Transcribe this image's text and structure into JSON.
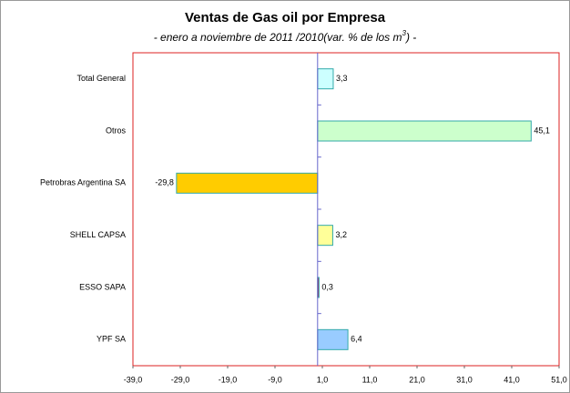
{
  "chart_data": {
    "type": "hbar",
    "title": "Ventas de Gas oil por Empresa",
    "subtitle": [
      "- enero a noviembre de 2011 /2010(var. % de los m",
      "3",
      ") -"
    ],
    "categories": [
      "Total General",
      "Otros",
      "Petrobras Argentina SA",
      "SHELL CAPSA",
      "ESSO SAPA",
      "YPF SA"
    ],
    "values": [
      3.3,
      45.1,
      -29.8,
      3.2,
      0.3,
      6.4
    ],
    "value_labels": [
      "3,3",
      "45,1",
      "-29,8",
      "3,2",
      "0,3",
      "6,4"
    ],
    "colors": [
      "#ccffff",
      "#ccffcc",
      "#ffcc00",
      "#ffff99",
      "#cc0044",
      "#99ccff"
    ],
    "xlim": [
      -39,
      51
    ],
    "xticks": [
      {
        "value": -39,
        "label": "-39,0"
      },
      {
        "value": -29,
        "label": "-29,0"
      },
      {
        "value": -19,
        "label": "-19,0"
      },
      {
        "value": -9,
        "label": "-9,0"
      },
      {
        "value": 1,
        "label": "1,0"
      },
      {
        "value": 11,
        "label": "11,0"
      },
      {
        "value": 21,
        "label": "21,0"
      },
      {
        "value": 31,
        "label": "31,0"
      },
      {
        "value": 41,
        "label": "41,0"
      },
      {
        "value": 51,
        "label": "51,0"
      }
    ]
  }
}
